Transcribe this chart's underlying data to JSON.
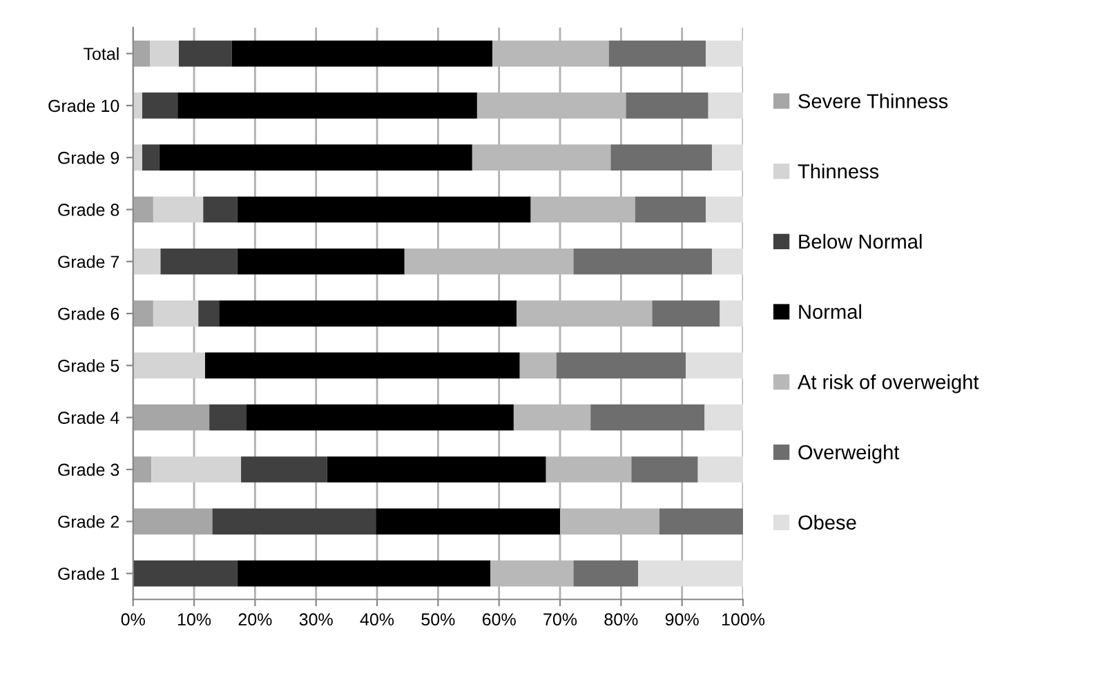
{
  "chart_data": {
    "type": "bar",
    "orientation": "horizontal",
    "stacked": true,
    "categories": [
      "Total",
      "Grade 10",
      "Grade 9",
      "Grade 8",
      "Grade 7",
      "Grade 6",
      "Grade 5",
      "Grade 4",
      "Grade 3",
      "Grade 2",
      "Grade 1"
    ],
    "series": [
      {
        "name": "Severe Thinness",
        "color": "#a6a6a6",
        "values": [
          2.8,
          0,
          0,
          3.3,
          0,
          3.3,
          0,
          12.5,
          3.0,
          13.0,
          0
        ]
      },
      {
        "name": "Thinness",
        "color": "#d4d4d4",
        "values": [
          4.7,
          1.5,
          1.5,
          8.2,
          4.5,
          7.4,
          11.8,
          0,
          14.7,
          0,
          0
        ]
      },
      {
        "name": "Below Normal",
        "color": "#404040",
        "values": [
          8.7,
          5.8,
          2.8,
          5.6,
          12.6,
          3.4,
          0,
          6.1,
          14.1,
          26.8,
          17.1
        ]
      },
      {
        "name": "Normal",
        "color": "#000000",
        "values": [
          42.7,
          49.1,
          51.3,
          48.1,
          27.4,
          48.8,
          51.6,
          43.8,
          35.9,
          30.2,
          41.5
        ]
      },
      {
        "name": "At risk of overweight",
        "color": "#b8b8b8",
        "values": [
          19.1,
          24.4,
          22.7,
          17.1,
          27.7,
          22.2,
          6.0,
          12.6,
          14.0,
          16.3,
          13.6
        ]
      },
      {
        "name": "Overweight",
        "color": "#6e6e6e",
        "values": [
          15.9,
          13.5,
          16.6,
          11.6,
          22.7,
          11.1,
          21.2,
          18.7,
          10.9,
          13.7,
          10.6
        ]
      },
      {
        "name": "Obese",
        "color": "#e0e0e0",
        "values": [
          6.1,
          5.7,
          5.1,
          6.1,
          5.1,
          3.8,
          9.4,
          6.3,
          7.4,
          0,
          17.2
        ]
      }
    ],
    "xlim": [
      0,
      100
    ],
    "xticks": [
      {
        "value": 0,
        "label": "0%"
      },
      {
        "value": 10,
        "label": "10%"
      },
      {
        "value": 20,
        "label": "20%"
      },
      {
        "value": 30,
        "label": "30%"
      },
      {
        "value": 40,
        "label": "40%"
      },
      {
        "value": 50,
        "label": "50%"
      },
      {
        "value": 60,
        "label": "60%"
      },
      {
        "value": 70,
        "label": "70%"
      },
      {
        "value": 80,
        "label": "80%"
      },
      {
        "value": 90,
        "label": "90%"
      },
      {
        "value": 100,
        "label": "100%"
      }
    ],
    "grid": "x",
    "legend": "right"
  }
}
